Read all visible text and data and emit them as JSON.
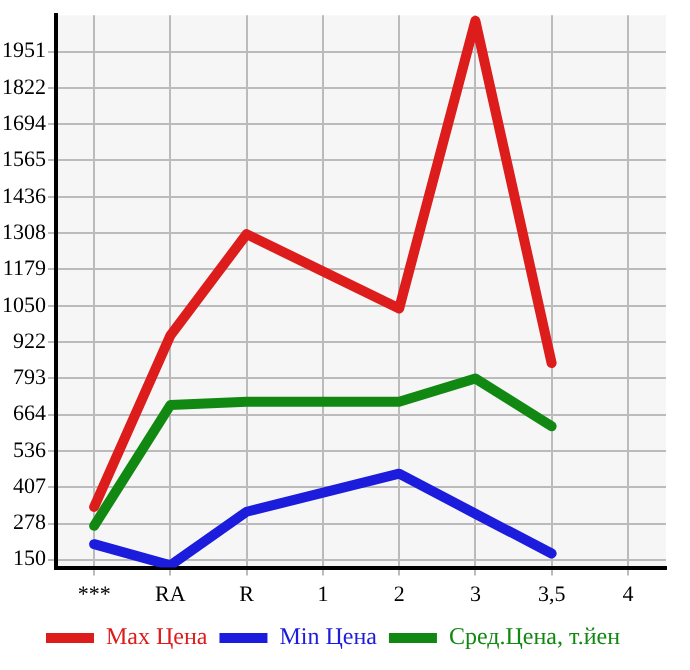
{
  "chart_data": {
    "type": "line",
    "categories": [
      "***",
      "RA",
      "R",
      "1",
      "2",
      "3",
      "3,5",
      "4"
    ],
    "series": [
      {
        "name": "Max Цена",
        "color": "#dd1c1c",
        "values": [
          337,
          945,
          1304,
          null,
          1040,
          2060,
          847,
          null
        ]
      },
      {
        "name": "Min Цена",
        "color": "#1c1cdd",
        "values": [
          205,
          130,
          320,
          null,
          455,
          313,
          172,
          null
        ]
      },
      {
        "name": "Сред.Цена, т.йен",
        "color": "#118811",
        "values": [
          270,
          698,
          710,
          null,
          710,
          792,
          623,
          null
        ]
      }
    ],
    "ylim": [
      122,
      2080
    ],
    "yticks": [
      150,
      278,
      407,
      536,
      664,
      793,
      922,
      1050,
      1179,
      1308,
      1436,
      1565,
      1694,
      1822,
      1951
    ],
    "grid": true,
    "legend": "bottom",
    "marker": "none",
    "line_style": "solid"
  }
}
